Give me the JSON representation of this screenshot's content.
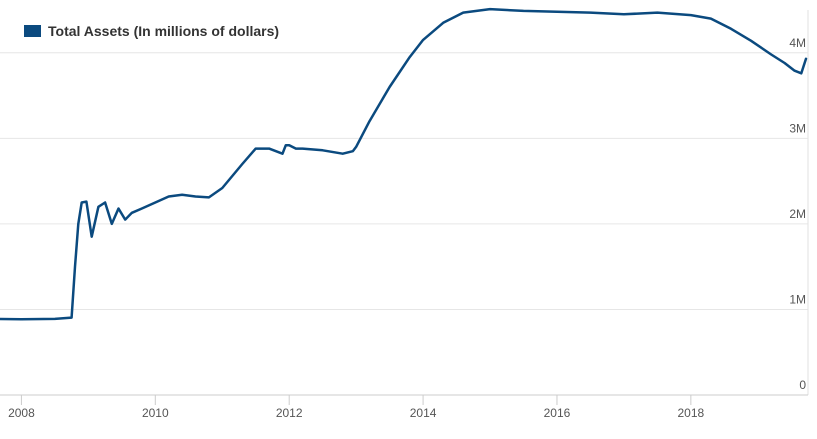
{
  "chart_data": {
    "type": "line",
    "title": "",
    "xlabel": "",
    "ylabel": "",
    "legend": {
      "position": "top-left",
      "label": "Total Assets (In millions of dollars)"
    },
    "grid": true,
    "series": [
      {
        "name": "Total Assets (In millions of dollars)",
        "color": "#0b4a7f",
        "x": [
          2007.5,
          2008.0,
          2008.5,
          2008.75,
          2008.8,
          2008.85,
          2008.9,
          2008.97,
          2009.05,
          2009.15,
          2009.25,
          2009.35,
          2009.45,
          2009.55,
          2009.65,
          2009.8,
          2010.0,
          2010.2,
          2010.4,
          2010.6,
          2010.8,
          2011.0,
          2011.3,
          2011.5,
          2011.7,
          2011.9,
          2011.95,
          2012.0,
          2012.1,
          2012.2,
          2012.5,
          2012.8,
          2012.95,
          2013.0,
          2013.2,
          2013.5,
          2013.8,
          2014.0,
          2014.3,
          2014.6,
          2014.9,
          2015.0,
          2015.5,
          2016.0,
          2016.5,
          2017.0,
          2017.5,
          2018.0,
          2018.3,
          2018.6,
          2018.9,
          2019.2,
          2019.4,
          2019.55,
          2019.65,
          2019.72
        ],
        "values": [
          890000,
          885000,
          890000,
          905000,
          1500000,
          2000000,
          2250000,
          2260000,
          1850000,
          2200000,
          2250000,
          2000000,
          2180000,
          2050000,
          2130000,
          2180000,
          2250000,
          2320000,
          2340000,
          2320000,
          2310000,
          2420000,
          2700000,
          2880000,
          2880000,
          2820000,
          2920000,
          2920000,
          2880000,
          2880000,
          2860000,
          2820000,
          2850000,
          2900000,
          3200000,
          3600000,
          3950000,
          4150000,
          4350000,
          4470000,
          4500000,
          4510000,
          4490000,
          4480000,
          4470000,
          4450000,
          4470000,
          4440000,
          4400000,
          4280000,
          4140000,
          3980000,
          3880000,
          3790000,
          3760000,
          3930000
        ]
      }
    ],
    "x_ticks": [
      "2008",
      "2010",
      "2012",
      "2014",
      "2016",
      "2018"
    ],
    "x_tick_values": [
      2008,
      2010,
      2012,
      2014,
      2016,
      2018
    ],
    "y_ticks": [
      "0",
      "1M",
      "2M",
      "3M",
      "4M"
    ],
    "y_tick_values": [
      0,
      1000000,
      2000000,
      3000000,
      4000000
    ],
    "xlim": [
      2007.68,
      2019.75
    ],
    "ylim": [
      0,
      4500000
    ]
  }
}
